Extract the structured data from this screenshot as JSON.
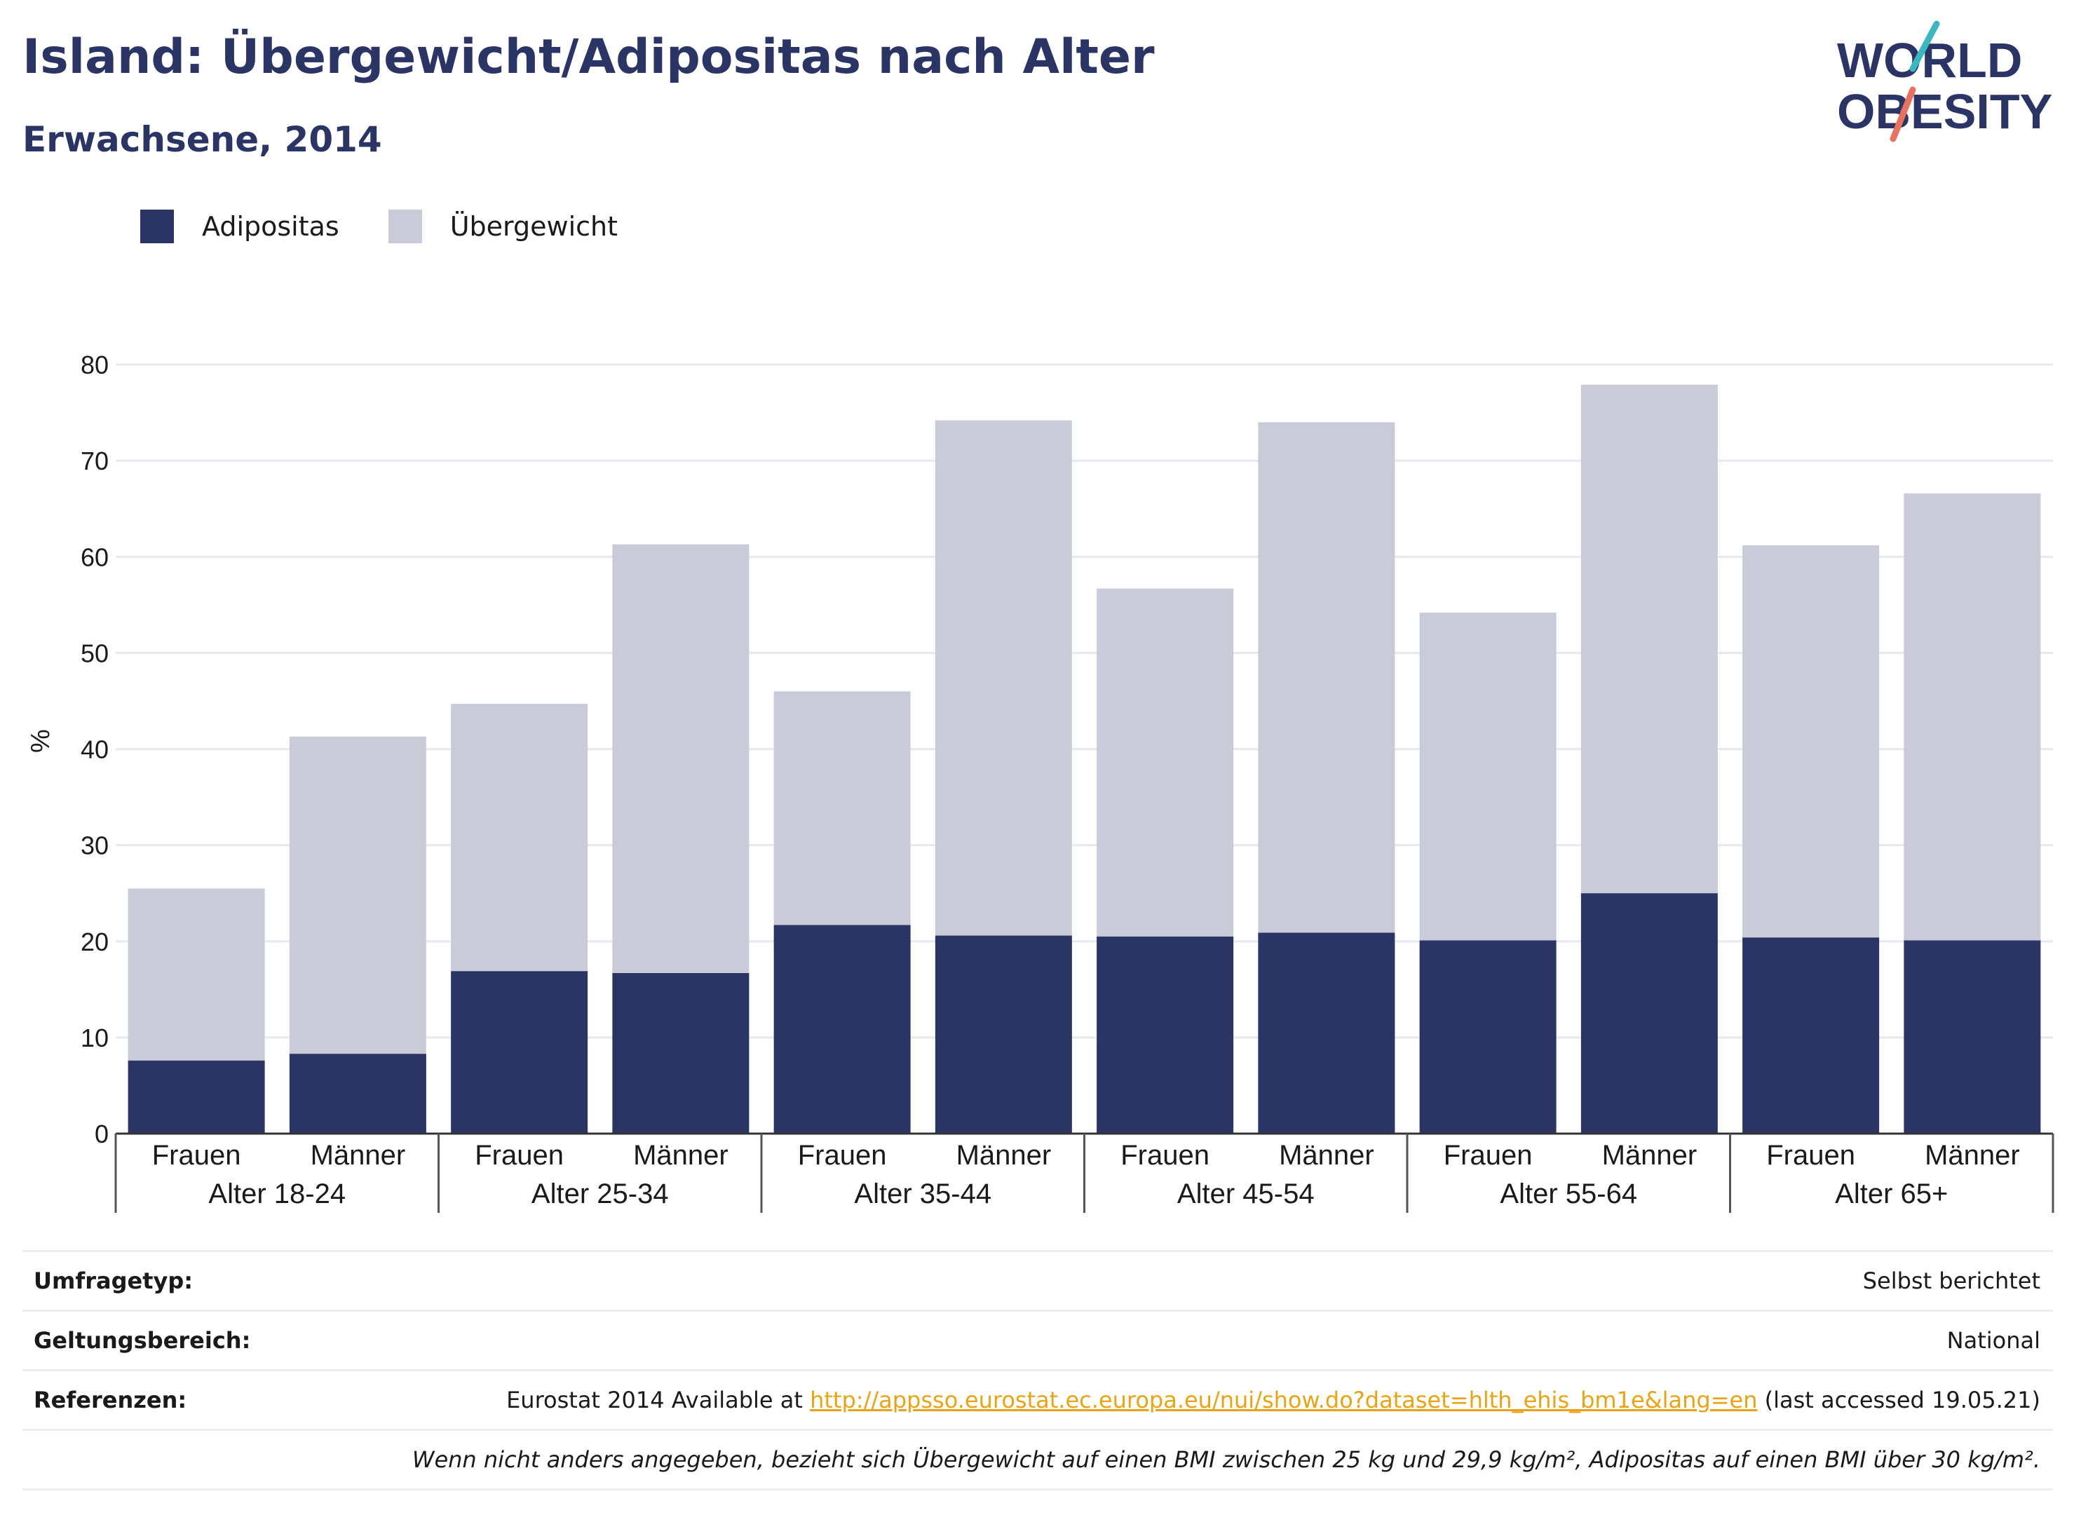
{
  "title": "Island: Übergewicht/Adipositas nach Alter",
  "subtitle": "Erwachsene, 2014",
  "logo": {
    "line1": "WORLD",
    "line2": "OBESITY"
  },
  "colors": {
    "obesity": "#2b3565",
    "overweight": "#cacbd8",
    "title": "#2b3565",
    "link": "#e9a416"
  },
  "legend": {
    "obesity": "Adipositas",
    "overweight": "Übergewicht"
  },
  "chart_data": {
    "type": "bar",
    "stacked": true,
    "ylabel": "%",
    "ylim": [
      0,
      80
    ],
    "yticks": [
      0,
      10,
      20,
      30,
      40,
      50,
      60,
      70,
      80
    ],
    "grid": true,
    "legend_position": "top-left",
    "groups": [
      "Alter 18-24",
      "Alter 25-34",
      "Alter 35-44",
      "Alter 45-54",
      "Alter 55-64",
      "Alter 65+"
    ],
    "sexes": [
      "Frauen",
      "Männer"
    ],
    "categories": [
      "Alter 18-24 Frauen",
      "Alter 18-24 Männer",
      "Alter 25-34 Frauen",
      "Alter 25-34 Männer",
      "Alter 35-44 Frauen",
      "Alter 35-44 Männer",
      "Alter 45-54 Frauen",
      "Alter 45-54 Männer",
      "Alter 55-64 Frauen",
      "Alter 55-64 Männer",
      "Alter 65+ Frauen",
      "Alter 65+ Männer"
    ],
    "series": [
      {
        "name": "Adipositas",
        "values": [
          7.6,
          8.3,
          16.9,
          16.7,
          21.7,
          20.6,
          20.5,
          20.9,
          20.1,
          25.0,
          20.4,
          20.1
        ]
      },
      {
        "name": "Übergewicht",
        "values": [
          17.9,
          33.0,
          27.8,
          44.6,
          24.3,
          53.6,
          36.2,
          53.1,
          34.1,
          52.9,
          40.8,
          46.5
        ]
      }
    ]
  },
  "footer": {
    "survey_label": "Umfragetyp:",
    "survey_value": "Selbst berichtet",
    "coverage_label": "Geltungsbereich:",
    "coverage_value": "National",
    "refs_label": "Referenzen:",
    "refs_prefix": "Eurostat 2014 Available at",
    "refs_link": "http://appsso.eurostat.ec.europa.eu/nui/show.do?dataset=hlth_ehis_bm1e&lang=en",
    "refs_suffix": "(last accessed 19.05.21)",
    "note": "Wenn nicht anders angegeben, bezieht sich Übergewicht auf einen BMI zwischen 25 kg und 29,9 kg/m², Adipositas auf einen BMI über 30 kg/m²."
  }
}
